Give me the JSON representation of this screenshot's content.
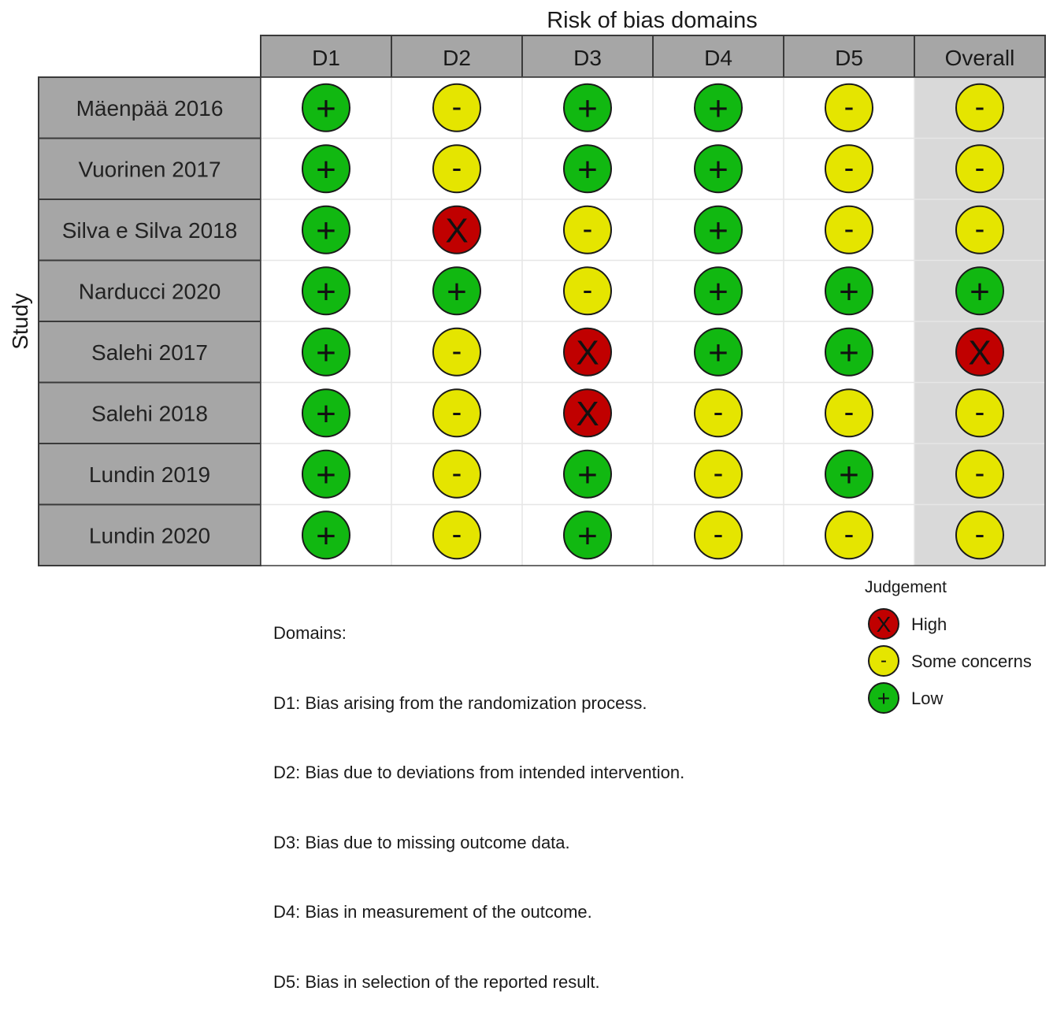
{
  "chart_data": {
    "type": "table",
    "title": "Risk of bias domains",
    "ylabel": "Study",
    "columns": [
      "D1",
      "D2",
      "D3",
      "D4",
      "D5",
      "Overall"
    ],
    "studies": [
      "Mäenpää 2016",
      "Vuorinen 2017",
      "Silva e Silva 2018",
      "Narducci 2020",
      "Salehi 2017",
      "Salehi 2018",
      "Lundin 2019",
      "Lundin 2020"
    ],
    "judgements": [
      [
        "low",
        "some",
        "low",
        "low",
        "some",
        "some"
      ],
      [
        "low",
        "some",
        "low",
        "low",
        "some",
        "some"
      ],
      [
        "low",
        "high",
        "some",
        "low",
        "some",
        "some"
      ],
      [
        "low",
        "low",
        "some",
        "low",
        "low",
        "low"
      ],
      [
        "low",
        "some",
        "high",
        "low",
        "low",
        "high"
      ],
      [
        "low",
        "some",
        "high",
        "some",
        "some",
        "some"
      ],
      [
        "low",
        "some",
        "low",
        "some",
        "low",
        "some"
      ],
      [
        "low",
        "some",
        "low",
        "some",
        "some",
        "some"
      ]
    ],
    "domains_heading": "Domains:",
    "domains": [
      "D1: Bias arising from the randomization process.",
      "D2: Bias due to deviations from intended intervention.",
      "D3: Bias due to missing outcome data.",
      "D4: Bias in measurement of the outcome.",
      "D5: Bias in selection of the reported result."
    ],
    "legend_title": "Judgement",
    "legend": [
      {
        "key": "high",
        "label": "High",
        "symbol": "X",
        "color": "#c00000"
      },
      {
        "key": "some",
        "label": "Some concerns",
        "symbol": "-",
        "color": "#e5e500"
      },
      {
        "key": "low",
        "label": "Low",
        "symbol": "+",
        "color": "#11b811"
      }
    ]
  }
}
